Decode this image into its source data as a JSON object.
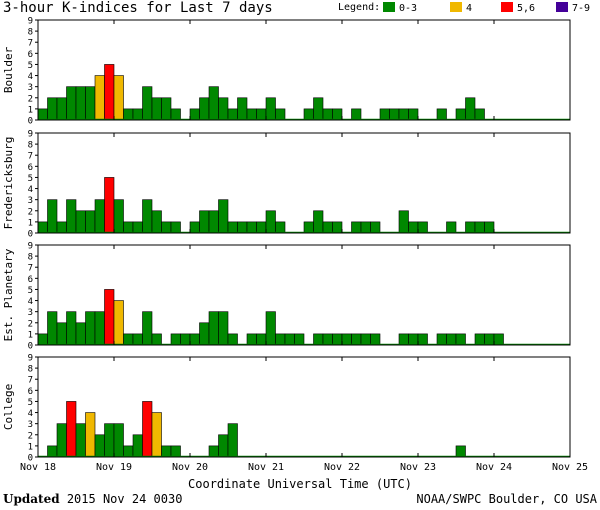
{
  "title": "3-hour K-indices for Last 7 days",
  "legend": {
    "label": "Legend:",
    "items": [
      {
        "label": "0-3",
        "color": "#008800"
      },
      {
        "label": "4",
        "color": "#f0b800"
      },
      {
        "label": "5,6",
        "color": "#ff0000"
      },
      {
        "label": "7-9",
        "color": "#440099"
      }
    ]
  },
  "chart_data": {
    "type": "bar",
    "ylim": [
      0,
      9
    ],
    "y_ticks": [
      "0",
      "1",
      "2",
      "3",
      "4",
      "5",
      "6",
      "7",
      "8",
      "9"
    ],
    "x_ticks": [
      "Nov 18",
      "Nov 19",
      "Nov 20",
      "Nov 21",
      "Nov 22",
      "Nov 23",
      "Nov 24",
      "Nov 25"
    ],
    "xlabel": "Coordinate Universal Time (UTC)",
    "interval_hours": 3,
    "panels": [
      {
        "name": "Boulder",
        "values": [
          1,
          2,
          2,
          3,
          3,
          3,
          4,
          5,
          4,
          1,
          1,
          3,
          2,
          2,
          1,
          0,
          1,
          2,
          3,
          2,
          1,
          2,
          1,
          1,
          2,
          1,
          0,
          0,
          1,
          2,
          1,
          1,
          0,
          1,
          0,
          0,
          1,
          1,
          1,
          1,
          0,
          0,
          1,
          0,
          1,
          2,
          1
        ]
      },
      {
        "name": "Fredericksburg",
        "values": [
          1,
          3,
          1,
          3,
          2,
          2,
          3,
          5,
          3,
          1,
          1,
          3,
          2,
          1,
          1,
          0,
          1,
          2,
          2,
          3,
          1,
          1,
          1,
          1,
          2,
          1,
          0,
          0,
          1,
          2,
          1,
          1,
          0,
          1,
          1,
          1,
          0,
          0,
          2,
          1,
          1,
          0,
          0,
          1,
          0,
          1,
          1,
          1
        ]
      },
      {
        "name": "Est. Planetary",
        "values": [
          1,
          3,
          2,
          3,
          2,
          3,
          3,
          5,
          4,
          1,
          1,
          3,
          1,
          0,
          1,
          1,
          1,
          2,
          3,
          3,
          1,
          0,
          1,
          1,
          3,
          1,
          1,
          1,
          0,
          1,
          1,
          1,
          1,
          1,
          1,
          1,
          0,
          0,
          1,
          1,
          1,
          0,
          1,
          1,
          1,
          0,
          1,
          1,
          1
        ]
      },
      {
        "name": "College",
        "values": [
          0,
          1,
          3,
          5,
          3,
          4,
          2,
          3,
          3,
          1,
          2,
          5,
          4,
          1,
          1,
          0,
          0,
          0,
          1,
          2,
          3,
          0,
          0,
          0,
          0,
          0,
          0,
          0,
          0,
          0,
          0,
          0,
          0,
          0,
          0,
          0,
          0,
          0,
          0,
          0,
          0,
          0,
          0,
          0,
          1,
          0,
          0,
          0
        ]
      }
    ]
  },
  "footer": {
    "updated_label": "Updated",
    "updated_value": "2015 Nov 24 0030",
    "source": "NOAA/SWPC Boulder, CO USA"
  }
}
